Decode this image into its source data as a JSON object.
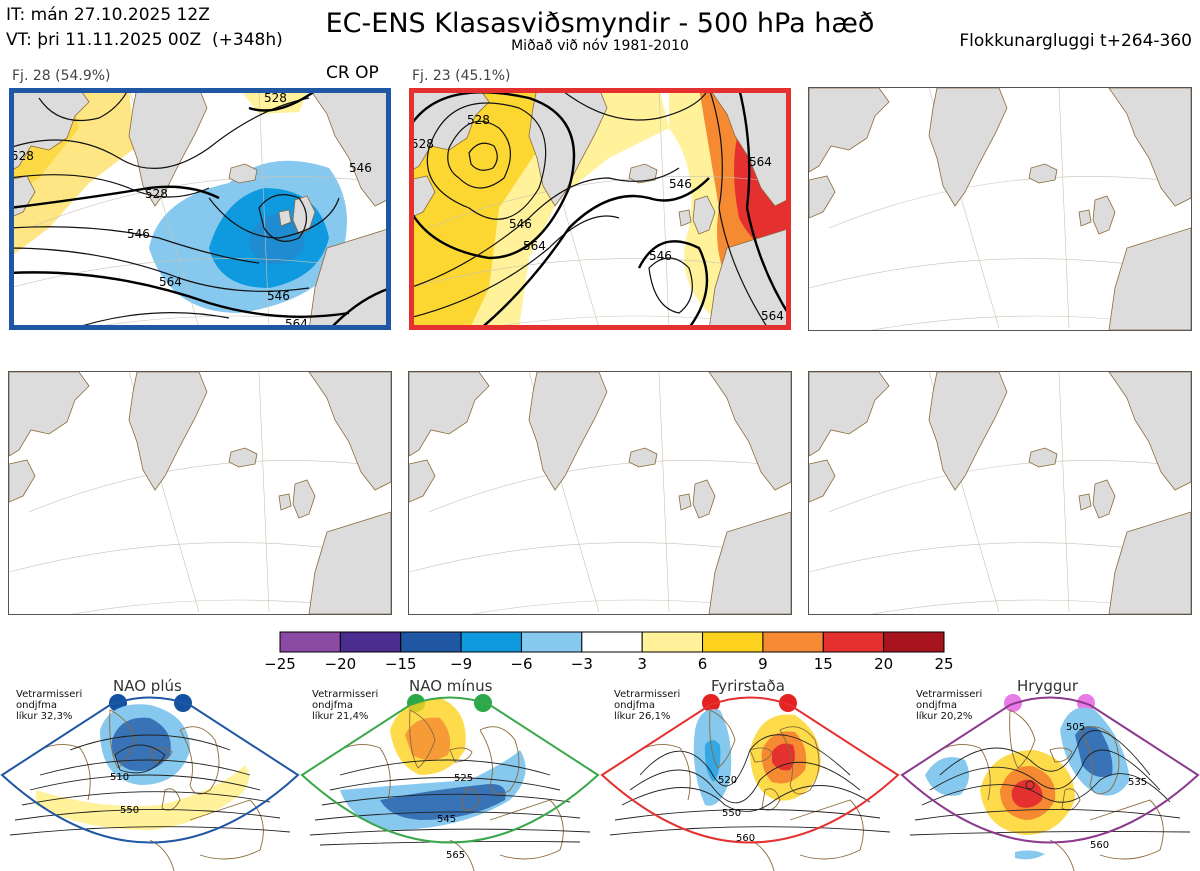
{
  "header": {
    "init_time": "IT: mán 27.10.2025 12Z",
    "valid_time": "VT: þri 11.11.2025 00Z  (+348h)",
    "title": "EC-ENS Klasasviðsmyndir - 500 hPa hæð",
    "subtitle": "Miðað við nóv 1981-2010",
    "window": "Flokkunargluggi t+264-360"
  },
  "panels": [
    {
      "label": "Fj. 28 (54.9%)",
      "tag": "CR OP",
      "border_color": "#1f57a4",
      "contour_labels": [
        "528",
        "528",
        "546",
        "546",
        "564",
        "564",
        "546",
        "528"
      ]
    },
    {
      "label": "Fj. 23 (45.1%)",
      "tag": "",
      "border_color": "#e53030",
      "contour_labels": [
        "528",
        "528",
        "546",
        "564",
        "546",
        "546",
        "564",
        "564"
      ]
    },
    {
      "label": "",
      "tag": "",
      "border_color": ""
    },
    {
      "label": "",
      "tag": "",
      "border_color": ""
    },
    {
      "label": "",
      "tag": "",
      "border_color": ""
    },
    {
      "label": "",
      "tag": "",
      "border_color": ""
    }
  ],
  "colorbar": {
    "ticks": [
      "−25",
      "−20",
      "−15",
      "−9",
      "−6",
      "−3",
      "3",
      "6",
      "9",
      "15",
      "20",
      "25"
    ],
    "colors": [
      "#8b4aa3",
      "#4a2d8e",
      "#1f57a4",
      "#0f9ae0",
      "#86c8ee",
      "#ffffff",
      "#fff29a",
      "#fcd21e",
      "#f58a33",
      "#e53030",
      "#a8141e"
    ]
  },
  "regimes": [
    {
      "name": "NAO plús",
      "note": "Vetrarmisseri\nondjfma\nlíkur 32,3%",
      "color": "#1f57a4",
      "dot_color": "#1451a0",
      "contour_labels": [
        "510",
        "550"
      ]
    },
    {
      "name": "NAO mínus",
      "note": "Vetrarmisseri\nondjfma\nlíkur 21,4%",
      "color": "#3aa84a",
      "dot_color": "#2aa84a",
      "contour_labels": [
        "525",
        "545",
        "565"
      ]
    },
    {
      "name": "Fyrirstaða",
      "note": "Vetrarmisseri\nondjfma\nlíkur 26,1%",
      "color": "#e53030",
      "dot_color": "#e52222",
      "contour_labels": [
        "520",
        "550",
        "560"
      ]
    },
    {
      "name": "Hryggur",
      "note": "Vetrarmisseri\nondjfma\nlíkur 20,2%",
      "color": "#8b3a8e",
      "dot_color": "#e87be6",
      "contour_labels": [
        "505",
        "535",
        "560"
      ]
    }
  ]
}
